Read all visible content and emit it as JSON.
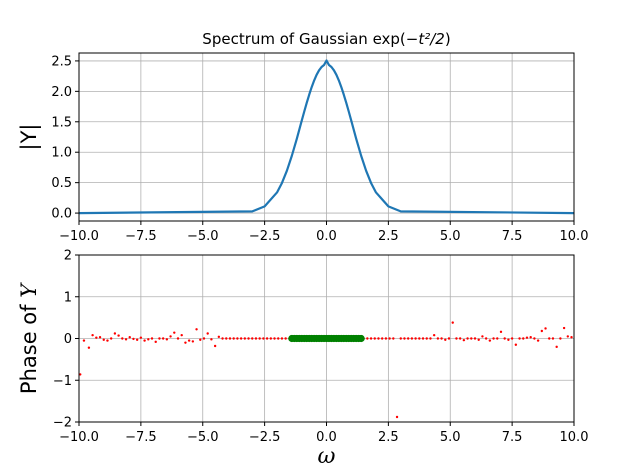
{
  "chart_data": [
    {
      "type": "line",
      "title_prefix": "Spectrum of Gaussian exp(",
      "title_math": "−t²/2",
      "title_suffix": ")",
      "ylabel": "|Y|",
      "xlim": [
        -10,
        10
      ],
      "ylim": [
        -0.13,
        2.63
      ],
      "xticks": [
        -10,
        -7.5,
        -5,
        -2.5,
        0,
        2.5,
        5,
        7.5,
        10
      ],
      "xtick_labels": [
        "−10.0",
        "−7.5",
        "−5.0",
        "−2.5",
        "0.0",
        "2.5",
        "5.0",
        "7.5",
        "10.0"
      ],
      "yticks": [
        0,
        0.5,
        1,
        1.5,
        2,
        2.5
      ],
      "ytick_labels": [
        "0.0",
        "0.5",
        "1.0",
        "1.5",
        "2.0",
        "2.5"
      ],
      "grid": true,
      "series": [
        {
          "color": "#1f77b4",
          "x": [
            -10,
            -3,
            -2.5,
            -2,
            -1.8,
            -1.6,
            -1.4,
            -1.2,
            -1.0,
            -0.9,
            -0.8,
            -0.7,
            -0.6,
            -0.5,
            -0.4,
            -0.3,
            -0.2,
            -0.1,
            0,
            0.1,
            0.2,
            0.3,
            0.4,
            0.5,
            0.6,
            0.7,
            0.8,
            0.9,
            1.0,
            1.2,
            1.4,
            1.6,
            1.8,
            2,
            2.5,
            3,
            10
          ],
          "y": [
            0,
            0.028,
            0.11,
            0.339,
            0.495,
            0.697,
            0.942,
            1.22,
            1.52,
            1.667,
            1.809,
            1.944,
            2.068,
            2.178,
            2.272,
            2.346,
            2.4,
            2.432,
            2.507,
            2.432,
            2.4,
            2.346,
            2.272,
            2.178,
            2.068,
            1.944,
            1.809,
            1.667,
            1.52,
            1.22,
            0.942,
            0.697,
            0.495,
            0.339,
            0.11,
            0.028,
            0
          ]
        }
      ]
    },
    {
      "type": "scatter",
      "ylabel_prefix": "Phase of ",
      "ylabel_var": "Y",
      "xlabel": "ω",
      "xlim": [
        -10,
        10
      ],
      "ylim": [
        -2,
        2
      ],
      "xticks": [
        -10,
        -7.5,
        -5,
        -2.5,
        0,
        2.5,
        5,
        7.5,
        10
      ],
      "xtick_labels": [
        "−10.0",
        "−7.5",
        "−5.0",
        "−2.5",
        "0.0",
        "2.5",
        "5.0",
        "7.5",
        "10.0"
      ],
      "yticks": [
        -2,
        -1,
        0,
        1,
        2
      ],
      "ytick_labels": [
        "−2",
        "−1",
        "0",
        "1",
        "2"
      ],
      "grid": true,
      "series": [
        {
          "color": "#ff0000",
          "marker_size": "small",
          "x": [
            -9.95,
            -9.8,
            -9.6,
            -9.45,
            -9.3,
            -9.15,
            -9.0,
            -8.85,
            -8.7,
            -8.55,
            -8.4,
            -8.25,
            -8.1,
            -7.95,
            -7.8,
            -7.65,
            -7.5,
            -7.35,
            -7.2,
            -7.05,
            -6.9,
            -6.75,
            -6.6,
            -6.45,
            -6.3,
            -6.15,
            -6.0,
            -5.85,
            -5.7,
            -5.55,
            -5.4,
            -5.25,
            -5.1,
            -4.95,
            -4.8,
            -4.65,
            -4.5,
            -4.35,
            -4.2,
            -4.05,
            -3.9,
            -3.75,
            -3.6,
            -3.45,
            -3.3,
            -3.15,
            -3.0,
            -2.85,
            -2.7,
            -2.55,
            -2.4,
            -2.25,
            -2.1,
            -1.95,
            -1.8,
            -1.65,
            -1.5,
            1.5,
            1.65,
            1.8,
            1.95,
            2.1,
            2.25,
            2.4,
            2.55,
            2.7,
            2.85,
            3.0,
            3.15,
            3.3,
            3.45,
            3.6,
            3.75,
            3.9,
            4.05,
            4.2,
            4.35,
            4.5,
            4.65,
            4.8,
            4.95,
            5.1,
            5.25,
            5.4,
            5.55,
            5.7,
            5.85,
            6.0,
            6.15,
            6.3,
            6.45,
            6.6,
            6.75,
            6.9,
            7.05,
            7.2,
            7.35,
            7.5,
            7.65,
            7.8,
            7.95,
            8.1,
            8.25,
            8.4,
            8.55,
            8.7,
            8.85,
            9.0,
            9.15,
            9.3,
            9.45,
            9.6,
            9.75,
            9.9
          ],
          "y": [
            -0.86,
            -0.05,
            -0.22,
            0.08,
            0.02,
            0.03,
            -0.03,
            -0.05,
            0.0,
            0.12,
            0.07,
            0.0,
            -0.02,
            0.03,
            -0.01,
            -0.03,
            0.02,
            -0.05,
            -0.02,
            0.0,
            -0.08,
            0.0,
            0.0,
            -0.02,
            0.05,
            0.14,
            0.0,
            0.08,
            -0.1,
            -0.05,
            -0.07,
            0.22,
            -0.03,
            0.0,
            0.12,
            -0.02,
            -0.18,
            0.04,
            0.0,
            0.0,
            0.0,
            0.0,
            0.0,
            0.0,
            0.0,
            0.0,
            0.0,
            0.0,
            0.0,
            0.0,
            0.0,
            0.0,
            0.0,
            0.0,
            0.0,
            0.0,
            0.0,
            0.0,
            0.0,
            0.0,
            0.0,
            0.0,
            0.0,
            0.0,
            0.0,
            0.0,
            -1.88,
            0.0,
            0.0,
            0.0,
            0.0,
            0.0,
            0.0,
            0.0,
            0.0,
            0.0,
            0.08,
            0.0,
            0.0,
            -0.03,
            0.0,
            0.38,
            0.0,
            0.0,
            -0.04,
            0.0,
            0.0,
            0.0,
            -0.03,
            0.05,
            0.0,
            -0.05,
            0.0,
            0.0,
            0.16,
            0.0,
            -0.03,
            0.0,
            -0.15,
            0.0,
            0.0,
            0.02,
            0.03,
            0.0,
            -0.05,
            0.18,
            0.24,
            0.0,
            0.0,
            -0.2,
            0.0,
            0.25,
            0.05,
            0.03
          ]
        },
        {
          "color": "#008000",
          "marker_size": "large",
          "x": [
            -1.4,
            -1.3,
            -1.2,
            -1.1,
            -1.0,
            -0.9,
            -0.8,
            -0.7,
            -0.6,
            -0.5,
            -0.4,
            -0.3,
            -0.2,
            -0.1,
            0,
            0.1,
            0.2,
            0.3,
            0.4,
            0.5,
            0.6,
            0.7,
            0.8,
            0.9,
            1.0,
            1.1,
            1.2,
            1.3,
            1.4
          ],
          "y": [
            0,
            0,
            0,
            0,
            0,
            0,
            0,
            0,
            0,
            0,
            0,
            0,
            0,
            0,
            0,
            0,
            0,
            0,
            0,
            0,
            0,
            0,
            0,
            0,
            0,
            0,
            0,
            0,
            0
          ]
        }
      ]
    }
  ]
}
